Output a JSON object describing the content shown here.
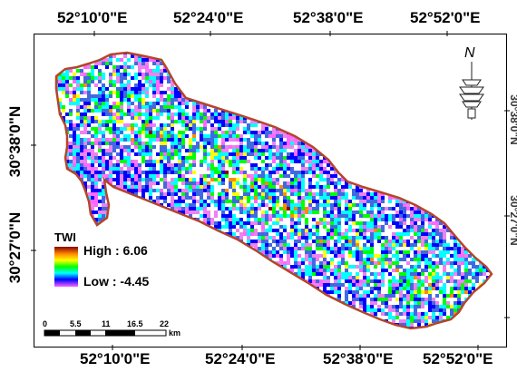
{
  "map": {
    "top_axis": [
      "52°10'0\"E",
      "52°24'0\"E",
      "52°38'0\"E",
      "52°52'0\"E"
    ],
    "bottom_axis": [
      "52°10'0\"E",
      "52°24'0\"E",
      "52°38'0\"E",
      "52°52'0\"E"
    ],
    "left_axis": [
      "30°38'0\"N",
      "30°27'0\"N"
    ],
    "right_axis": [
      "30°38'0\"N",
      "30°27'0\"N"
    ],
    "north_letter": "N",
    "boundary_color": "#b5452a",
    "legend": {
      "title": "TWI",
      "high_label": "High : 6.06",
      "low_label": "Low : -4.45",
      "high_value": 6.06,
      "low_value": -4.45
    },
    "scale_bar": {
      "ticks": [
        "0",
        "5.5",
        "11",
        "16.5",
        "22"
      ],
      "unit": "km"
    }
  }
}
